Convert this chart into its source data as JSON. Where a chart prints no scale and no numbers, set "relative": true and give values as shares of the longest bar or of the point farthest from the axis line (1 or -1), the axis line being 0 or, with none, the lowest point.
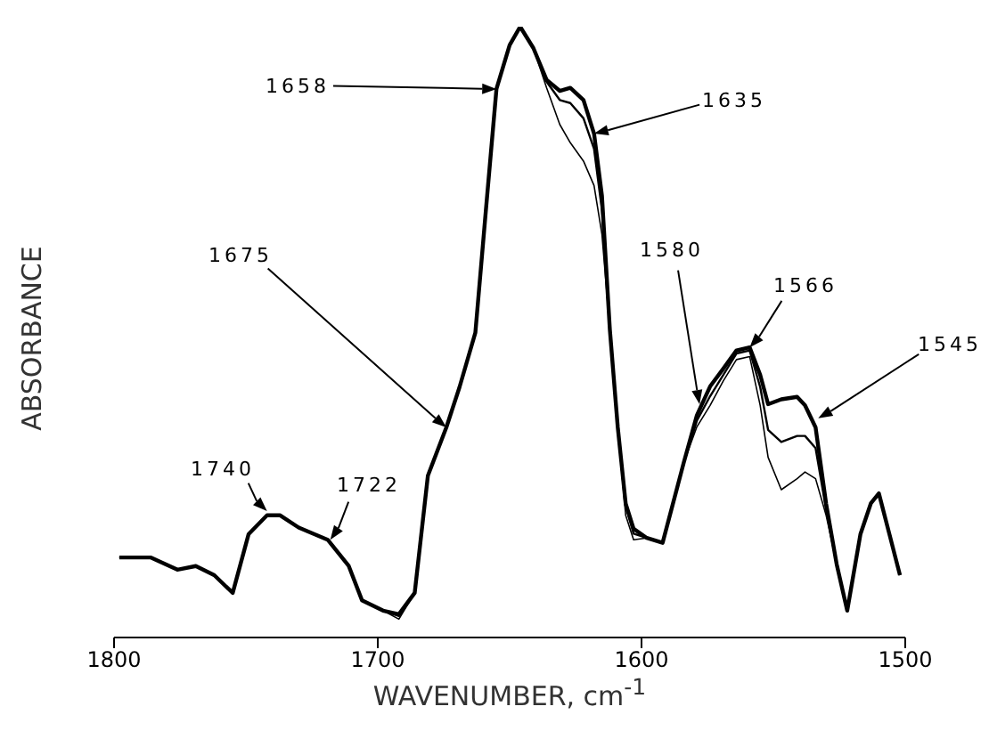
{
  "chart_data": {
    "type": "line",
    "relative": true,
    "xlabel": "WAVENUMBER, cm$^{-1}$",
    "ylabel": "ABSORBANCE",
    "xlim": [
      1800,
      1500
    ],
    "xticks": [
      1800,
      1700,
      1600,
      1500
    ],
    "grid": false,
    "legend": false,
    "marker": "none",
    "line_style": "solid",
    "x": [
      1798,
      1786,
      1776,
      1769,
      1762,
      1755,
      1749,
      1742,
      1737,
      1730,
      1719,
      1711,
      1706,
      1698,
      1692,
      1686,
      1681,
      1674,
      1669,
      1663,
      1659,
      1655,
      1650,
      1646,
      1641,
      1636,
      1631,
      1627,
      1622,
      1618,
      1615,
      1612,
      1609,
      1606,
      1603,
      1598,
      1592,
      1584,
      1579,
      1574,
      1569,
      1564,
      1559,
      1555,
      1552,
      1547,
      1541,
      1538,
      1534,
      1530,
      1526,
      1522,
      1517,
      1513,
      1510,
      1506,
      1502
    ],
    "series": [
      {
        "color": "#000000",
        "values": [
          0.131,
          0.131,
          0.111,
          0.117,
          0.102,
          0.073,
          0.169,
          0.2,
          0.2,
          0.18,
          0.16,
          0.117,
          0.061,
          0.044,
          0.038,
          0.073,
          0.265,
          0.344,
          0.41,
          0.499,
          0.7,
          0.898,
          0.97,
          1.0,
          0.965,
          0.913,
          0.895,
          0.9,
          0.88,
          0.825,
          0.723,
          0.504,
          0.344,
          0.219,
          0.178,
          0.163,
          0.155,
          0.286,
          0.364,
          0.411,
          0.44,
          0.47,
          0.475,
          0.43,
          0.382,
          0.39,
          0.394,
          0.38,
          0.344,
          0.219,
          0.12,
          0.044,
          0.169,
          0.22,
          0.236,
          0.169,
          0.102
        ]
      },
      {
        "color": "#000000",
        "values": [
          0.131,
          0.131,
          0.111,
          0.117,
          0.102,
          0.073,
          0.169,
          0.2,
          0.2,
          0.18,
          0.16,
          0.117,
          0.061,
          0.044,
          0.035,
          0.073,
          0.265,
          0.344,
          0.41,
          0.499,
          0.7,
          0.898,
          0.97,
          1.0,
          0.965,
          0.91,
          0.88,
          0.875,
          0.85,
          0.8,
          0.7,
          0.504,
          0.344,
          0.215,
          0.17,
          0.163,
          0.155,
          0.286,
          0.355,
          0.395,
          0.43,
          0.465,
          0.47,
          0.41,
          0.34,
          0.32,
          0.33,
          0.33,
          0.31,
          0.21,
          0.12,
          0.044,
          0.169,
          0.22,
          0.236,
          0.169,
          0.102
        ]
      },
      {
        "color": "#000000",
        "values": [
          0.131,
          0.131,
          0.111,
          0.117,
          0.102,
          0.073,
          0.169,
          0.2,
          0.2,
          0.18,
          0.16,
          0.117,
          0.061,
          0.044,
          0.03,
          0.073,
          0.265,
          0.344,
          0.41,
          0.499,
          0.7,
          0.898,
          0.97,
          1.0,
          0.965,
          0.9,
          0.84,
          0.81,
          0.78,
          0.74,
          0.66,
          0.504,
          0.344,
          0.2,
          0.16,
          0.163,
          0.155,
          0.286,
          0.345,
          0.38,
          0.42,
          0.455,
          0.46,
          0.38,
          0.295,
          0.242,
          0.26,
          0.271,
          0.26,
          0.2,
          0.12,
          0.044,
          0.169,
          0.22,
          0.236,
          0.169,
          0.102
        ]
      }
    ],
    "annotations": [
      {
        "text": "1658",
        "x": 1655,
        "y": 0.898
      },
      {
        "text": "1635",
        "x": 1618,
        "y": 0.825
      },
      {
        "text": "1675",
        "x": 1674,
        "y": 0.344
      },
      {
        "text": "1580",
        "x": 1578,
        "y": 0.382
      },
      {
        "text": "1566",
        "x": 1559,
        "y": 0.475
      },
      {
        "text": "1545",
        "x": 1533,
        "y": 0.359
      },
      {
        "text": "1740",
        "x": 1742,
        "y": 0.207
      },
      {
        "text": "1722",
        "x": 1718,
        "y": 0.16
      }
    ]
  }
}
